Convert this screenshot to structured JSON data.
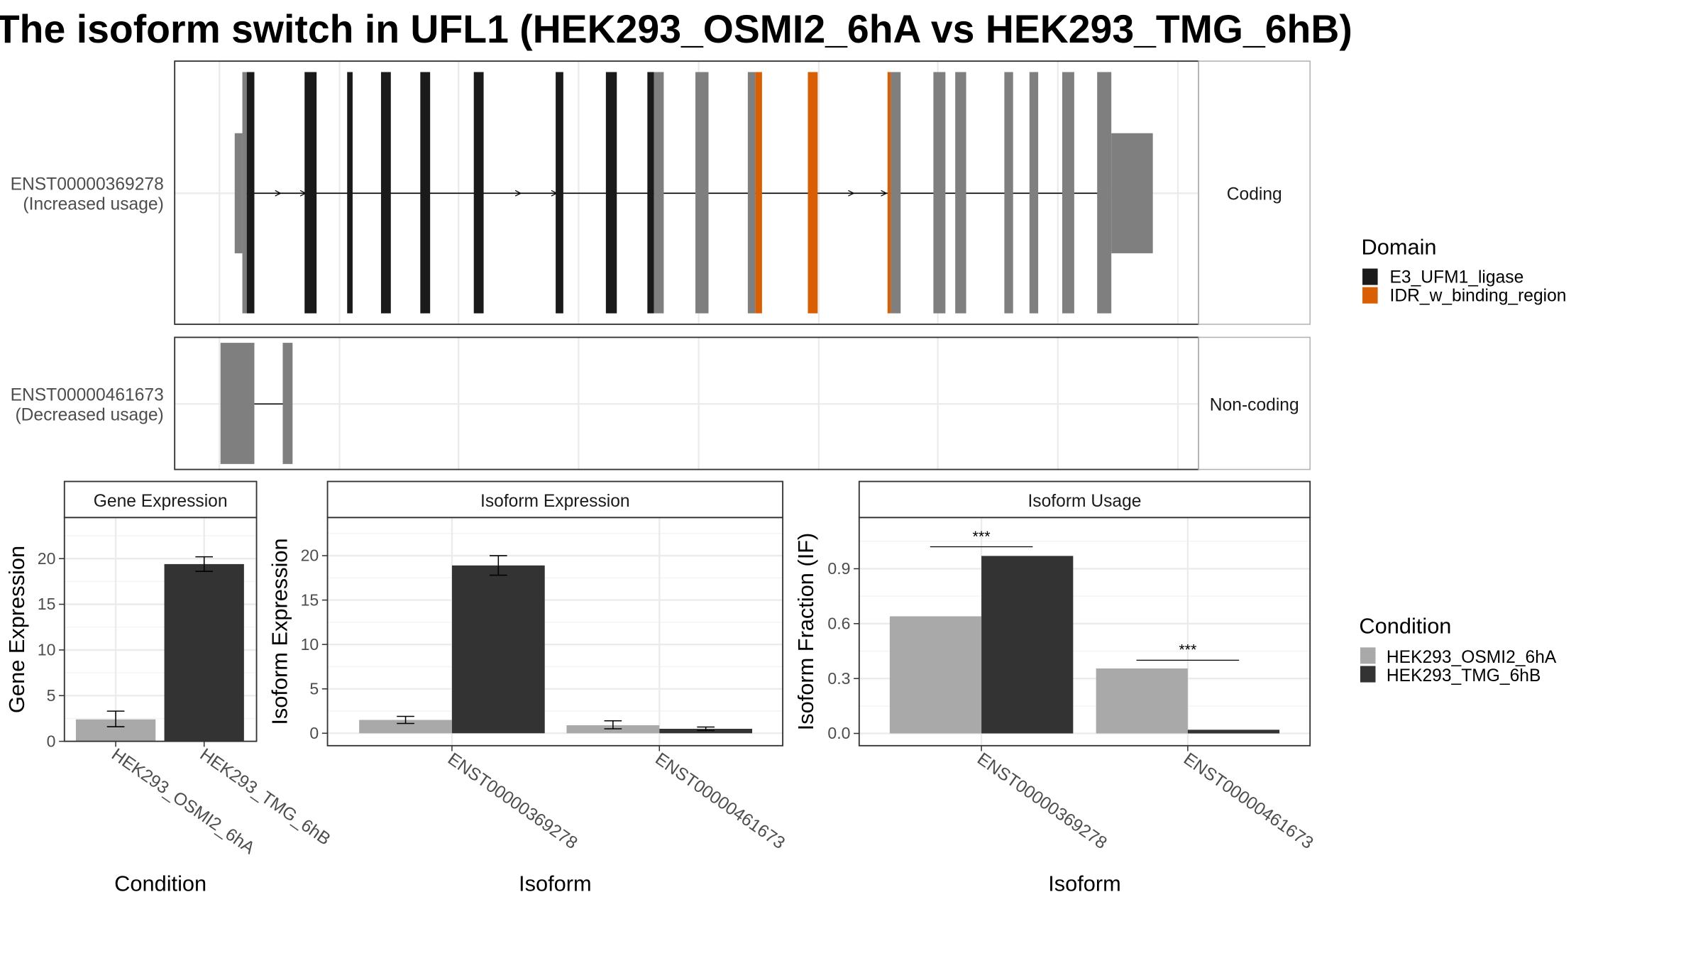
{
  "title": "The isoform switch in UFL1 (HEK293_OSMI2_6hA vs HEK293_TMG_6hB)",
  "colors": {
    "e3_domain": "#1a1a1a",
    "idr": "#d95f02",
    "exon_plain": "#7f7f7f",
    "cond_a": "#a9a9a9",
    "cond_b": "#333333",
    "grid": "#ebebeb",
    "axis_text": "#4d4d4d",
    "panel_border": "#333333",
    "strip_border": "#b3b3b3"
  },
  "structure": {
    "isoforms": [
      {
        "id": "ENST00000369278",
        "usage": "(Increased usage)",
        "strip": "Coding",
        "intron_range": [
          226,
          1008
        ],
        "arrows": [
          255,
          278,
          475,
          508,
          780,
          810
        ],
        "exons": [
          {
            "start": 215,
            "end": 222,
            "size": "utr",
            "domain": "none"
          },
          {
            "start": 222,
            "end": 226,
            "size": "cds",
            "domain": "none"
          },
          {
            "start": 226,
            "end": 233,
            "size": "cds",
            "domain": "E3_UFM1_ligase"
          },
          {
            "start": 279,
            "end": 290,
            "size": "cds",
            "domain": "E3_UFM1_ligase"
          },
          {
            "start": 318,
            "end": 323,
            "size": "cds",
            "domain": "E3_UFM1_ligase"
          },
          {
            "start": 349,
            "end": 358,
            "size": "cds",
            "domain": "E3_UFM1_ligase"
          },
          {
            "start": 385,
            "end": 394,
            "size": "cds",
            "domain": "E3_UFM1_ligase"
          },
          {
            "start": 434,
            "end": 443,
            "size": "cds",
            "domain": "E3_UFM1_ligase"
          },
          {
            "start": 509,
            "end": 516,
            "size": "cds",
            "domain": "E3_UFM1_ligase"
          },
          {
            "start": 555,
            "end": 565,
            "size": "cds",
            "domain": "E3_UFM1_ligase"
          },
          {
            "start": 593,
            "end": 599,
            "size": "cds",
            "domain": "E3_UFM1_ligase"
          },
          {
            "start": 599,
            "end": 608,
            "size": "cds",
            "domain": "none"
          },
          {
            "start": 637,
            "end": 649,
            "size": "cds",
            "domain": "none"
          },
          {
            "start": 685,
            "end": 692,
            "size": "cds",
            "domain": "none"
          },
          {
            "start": 692,
            "end": 698,
            "size": "cds",
            "domain": "IDR_w_binding_region"
          },
          {
            "start": 740,
            "end": 749,
            "size": "cds",
            "domain": "IDR_w_binding_region"
          },
          {
            "start": 813,
            "end": 816,
            "size": "cds",
            "domain": "IDR_w_binding_region"
          },
          {
            "start": 816,
            "end": 825,
            "size": "cds",
            "domain": "none"
          },
          {
            "start": 855,
            "end": 866,
            "size": "cds",
            "domain": "none"
          },
          {
            "start": 875,
            "end": 885,
            "size": "cds",
            "domain": "none"
          },
          {
            "start": 920,
            "end": 928,
            "size": "cds",
            "domain": "none"
          },
          {
            "start": 943,
            "end": 951,
            "size": "cds",
            "domain": "none"
          },
          {
            "start": 973,
            "end": 984,
            "size": "cds",
            "domain": "none"
          },
          {
            "start": 1005,
            "end": 1018,
            "size": "cds",
            "domain": "none"
          },
          {
            "start": 1018,
            "end": 1056,
            "size": "utr",
            "domain": "none"
          }
        ]
      },
      {
        "id": "ENST00000461673",
        "usage": "(Decreased usage)",
        "strip": "Non-coding",
        "intron_range": [
          233,
          259
        ],
        "arrows": [],
        "exons": [
          {
            "start": 202,
            "end": 233,
            "size": "cds",
            "domain": "none"
          },
          {
            "start": 259,
            "end": 268,
            "size": "cds",
            "domain": "none"
          }
        ]
      }
    ]
  },
  "legend_domain": {
    "title": "Domain",
    "items": [
      {
        "label": "E3_UFM1_ligase",
        "color": "#1a1a1a"
      },
      {
        "label": "IDR_w_binding_region",
        "color": "#d95f02"
      }
    ]
  },
  "legend_condition": {
    "title": "Condition",
    "items": [
      {
        "label": "HEK293_OSMI2_6hA",
        "color": "#a9a9a9"
      },
      {
        "label": "HEK293_TMG_6hB",
        "color": "#333333"
      }
    ]
  },
  "chart_data": [
    {
      "type": "bar",
      "title": "Gene Expression",
      "xlabel": "Condition",
      "ylabel": "Gene Expression",
      "ylim": [
        0,
        25
      ],
      "yticks": [
        0,
        5,
        10,
        15,
        20
      ],
      "categories": [
        "HEK293_OSMI2_6hA",
        "HEK293_TMG_6hB"
      ],
      "series": [
        {
          "name": "HEK293_OSMI2_6hA",
          "values": [
            2.4,
            null
          ],
          "err_low": [
            1.6,
            null
          ],
          "err_high": [
            3.3,
            null
          ]
        },
        {
          "name": "HEK293_TMG_6hB",
          "values": [
            null,
            19.4
          ],
          "err_low": [
            null,
            18.6
          ],
          "err_high": [
            null,
            20.2
          ]
        }
      ]
    },
    {
      "type": "bar",
      "title": "Isoform Expression",
      "xlabel": "Isoform",
      "ylabel": "Isoform Expression",
      "ylim": [
        0,
        25
      ],
      "yticks": [
        0,
        5,
        10,
        15,
        20
      ],
      "categories": [
        "ENST00000369278",
        "ENST00000461673"
      ],
      "series": [
        {
          "name": "HEK293_OSMI2_6hA",
          "values": [
            1.5,
            0.9
          ],
          "err_low": [
            1.1,
            0.5
          ],
          "err_high": [
            1.9,
            1.4
          ]
        },
        {
          "name": "HEK293_TMG_6hB",
          "values": [
            18.9,
            0.5
          ],
          "err_low": [
            17.8,
            0.3
          ],
          "err_high": [
            20.0,
            0.7
          ]
        }
      ]
    },
    {
      "type": "bar",
      "title": "Isoform Usage",
      "xlabel": "Isoform",
      "ylabel": "Isoform Fraction (IF)",
      "ylim": [
        0,
        1.2
      ],
      "yticks": [
        0.0,
        0.3,
        0.6,
        0.9
      ],
      "tick_labels": [
        "0.0",
        "0.3",
        "0.6",
        "0.9"
      ],
      "categories": [
        "ENST00000369278",
        "ENST00000461673"
      ],
      "series": [
        {
          "name": "HEK293_OSMI2_6hA",
          "values": [
            0.64,
            0.355
          ]
        },
        {
          "name": "HEK293_TMG_6hB",
          "values": [
            0.97,
            0.02
          ]
        }
      ],
      "annotations": [
        {
          "category": "ENST00000369278",
          "label": "***",
          "y": 1.02
        },
        {
          "category": "ENST00000461673",
          "label": "***",
          "y": 0.4
        }
      ]
    }
  ]
}
